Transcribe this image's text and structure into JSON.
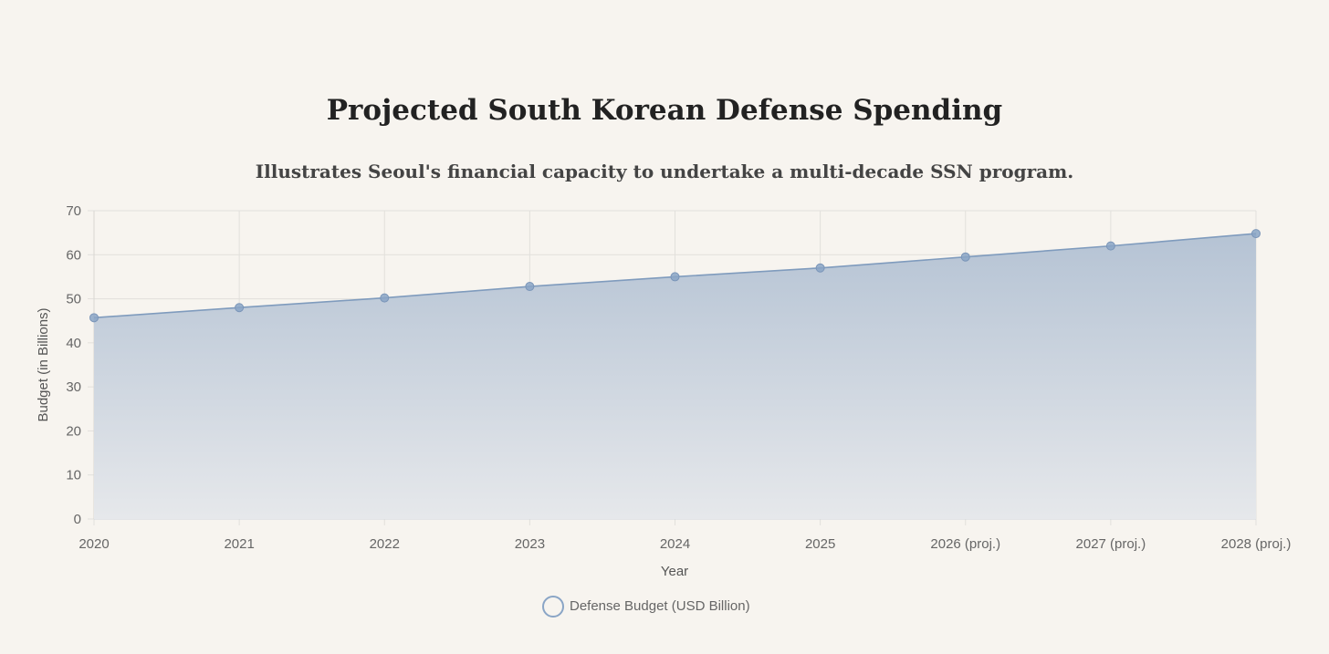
{
  "chart_data": {
    "type": "area",
    "title": "Projected South Korean Defense Spending",
    "subtitle": "Illustrates Seoul's financial capacity to undertake a multi-decade SSN program.",
    "xlabel": "Year",
    "ylabel": "Budget (in Billions)",
    "categories": [
      "2020",
      "2021",
      "2022",
      "2023",
      "2024",
      "2025",
      "2026 (proj.)",
      "2027 (proj.)",
      "2028 (proj.)"
    ],
    "series": [
      {
        "name": "Defense Budget (USD Billion)",
        "values": [
          45.7,
          48.0,
          50.2,
          52.8,
          55.0,
          57.0,
          59.5,
          62.0,
          64.8
        ]
      }
    ],
    "ylim": [
      0,
      70
    ],
    "yticks": [
      0,
      10,
      20,
      30,
      40,
      50,
      60,
      70
    ],
    "grid": true,
    "legend_position": "bottom",
    "colors": {
      "line": "#7f9bbd",
      "fill_top": "#b5c3d4",
      "fill_bottom": "#e6e8eb",
      "point": "#8aa5c6",
      "grid": "#e2e0dc",
      "background": "#f7f4ef"
    }
  }
}
